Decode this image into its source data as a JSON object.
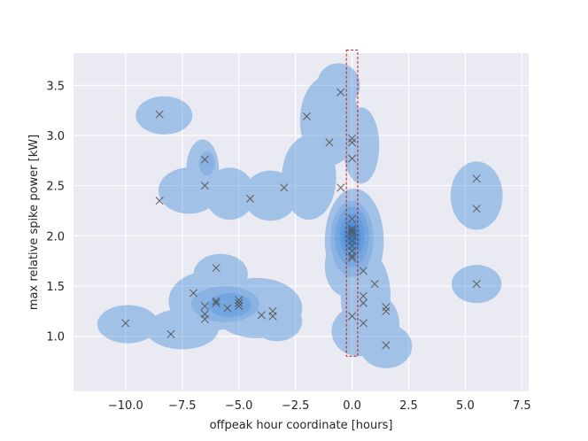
{
  "chart_data": {
    "type": "scatter",
    "title": "",
    "xlabel": "offpeak hour coordinate [hours]",
    "ylabel": "max relative spike power [kW]",
    "xlim": [
      -12.3,
      7.8
    ],
    "ylim": [
      0.45,
      3.82
    ],
    "x_ticks": [
      -10.0,
      -7.5,
      -5.0,
      -2.5,
      0.0,
      2.5,
      5.0,
      7.5
    ],
    "x_tick_labels": [
      "−10.0",
      "−7.5",
      "−5.0",
      "−2.5",
      "0.0",
      "2.5",
      "5.0",
      "7.5"
    ],
    "y_ticks": [
      1.0,
      1.5,
      2.0,
      2.5,
      3.0,
      3.5
    ],
    "y_tick_labels": [
      "1.0",
      "1.5",
      "2.0",
      "2.5",
      "3.0",
      "3.5"
    ],
    "grid": true,
    "background_color": "#eaeaf2",
    "density_color": "#1f77d4",
    "marker": "x",
    "marker_color": "#555555",
    "highlight_color": "#cc0000",
    "highlight_box": {
      "x": [
        -0.25,
        0.25
      ],
      "y": [
        0.8,
        3.85
      ]
    },
    "points": [
      {
        "x": -8.5,
        "y": 3.21
      },
      {
        "x": -8.5,
        "y": 2.35
      },
      {
        "x": -6.5,
        "y": 2.76
      },
      {
        "x": -6.5,
        "y": 2.5
      },
      {
        "x": -4.5,
        "y": 2.37
      },
      {
        "x": -3.0,
        "y": 2.48
      },
      {
        "x": -2.0,
        "y": 3.19
      },
      {
        "x": -1.0,
        "y": 2.93
      },
      {
        "x": -0.5,
        "y": 3.43
      },
      {
        "x": 0.0,
        "y": 2.97
      },
      {
        "x": 0.0,
        "y": 2.93
      },
      {
        "x": 0.0,
        "y": 2.77
      },
      {
        "x": -0.5,
        "y": 2.48
      },
      {
        "x": 0.0,
        "y": 2.17
      },
      {
        "x": 0.0,
        "y": 2.07
      },
      {
        "x": 0.0,
        "y": 2.05
      },
      {
        "x": 0.0,
        "y": 2.03
      },
      {
        "x": 0.0,
        "y": 2.0
      },
      {
        "x": 0.0,
        "y": 1.95
      },
      {
        "x": 0.0,
        "y": 1.9
      },
      {
        "x": 0.0,
        "y": 1.85
      },
      {
        "x": 0.0,
        "y": 1.8
      },
      {
        "x": 0.0,
        "y": 1.78
      },
      {
        "x": 0.5,
        "y": 1.65
      },
      {
        "x": 1.0,
        "y": 1.52
      },
      {
        "x": 0.5,
        "y": 1.4
      },
      {
        "x": 0.5,
        "y": 1.33
      },
      {
        "x": 0.0,
        "y": 1.2
      },
      {
        "x": 0.5,
        "y": 1.13
      },
      {
        "x": 1.5,
        "y": 1.29
      },
      {
        "x": 1.5,
        "y": 1.25
      },
      {
        "x": 1.5,
        "y": 0.91
      },
      {
        "x": 5.5,
        "y": 2.57
      },
      {
        "x": 5.5,
        "y": 2.27
      },
      {
        "x": 5.5,
        "y": 1.52
      },
      {
        "x": -10.0,
        "y": 1.13
      },
      {
        "x": -8.0,
        "y": 1.02
      },
      {
        "x": -7.0,
        "y": 1.43
      },
      {
        "x": -6.0,
        "y": 1.68
      },
      {
        "x": -6.5,
        "y": 1.3
      },
      {
        "x": -6.5,
        "y": 1.22
      },
      {
        "x": -6.5,
        "y": 1.17
      },
      {
        "x": -6.0,
        "y": 1.35
      },
      {
        "x": -6.0,
        "y": 1.33
      },
      {
        "x": -5.5,
        "y": 1.28
      },
      {
        "x": -5.0,
        "y": 1.36
      },
      {
        "x": -5.0,
        "y": 1.33
      },
      {
        "x": -5.0,
        "y": 1.3
      },
      {
        "x": -4.0,
        "y": 1.21
      },
      {
        "x": -3.5,
        "y": 1.25
      },
      {
        "x": -3.5,
        "y": 1.2
      }
    ],
    "density_levels": [
      {
        "level": 1,
        "opacity": 0.35,
        "blobs": [
          {
            "cx": -8.3,
            "cy": 3.2,
            "rx": 1.25,
            "ry": 0.19
          },
          {
            "cx": -6.6,
            "cy": 2.66,
            "rx": 0.72,
            "ry": 0.3
          },
          {
            "cx": -7.2,
            "cy": 2.45,
            "rx": 1.35,
            "ry": 0.23
          },
          {
            "cx": -5.4,
            "cy": 2.42,
            "rx": 1.1,
            "ry": 0.26
          },
          {
            "cx": -3.6,
            "cy": 2.4,
            "rx": 1.2,
            "ry": 0.25
          },
          {
            "cx": -1.9,
            "cy": 2.58,
            "rx": 1.2,
            "ry": 0.42
          },
          {
            "cx": -1.0,
            "cy": 3.15,
            "rx": 1.3,
            "ry": 0.45
          },
          {
            "cx": -0.6,
            "cy": 3.5,
            "rx": 0.95,
            "ry": 0.22
          },
          {
            "cx": 0.4,
            "cy": 2.9,
            "rx": 0.8,
            "ry": 0.38
          },
          {
            "cx": 0.1,
            "cy": 1.95,
            "rx": 1.3,
            "ry": 0.52
          },
          {
            "cx": -0.3,
            "cy": 1.7,
            "rx": 0.9,
            "ry": 0.3
          },
          {
            "cx": 0.6,
            "cy": 1.4,
            "rx": 1.1,
            "ry": 0.45
          },
          {
            "cx": 1.2,
            "cy": 1.1,
            "rx": 0.9,
            "ry": 0.3
          },
          {
            "cx": 1.5,
            "cy": 0.9,
            "rx": 1.15,
            "ry": 0.22
          },
          {
            "cx": 0.3,
            "cy": 1.05,
            "rx": 1.2,
            "ry": 0.25
          },
          {
            "cx": 5.5,
            "cy": 2.4,
            "rx": 1.15,
            "ry": 0.34
          },
          {
            "cx": 5.5,
            "cy": 1.52,
            "rx": 1.1,
            "ry": 0.19
          },
          {
            "cx": -9.9,
            "cy": 1.12,
            "rx": 1.35,
            "ry": 0.19
          },
          {
            "cx": -7.5,
            "cy": 1.07,
            "rx": 1.6,
            "ry": 0.2
          },
          {
            "cx": -6.3,
            "cy": 1.35,
            "rx": 1.8,
            "ry": 0.3
          },
          {
            "cx": -5.8,
            "cy": 1.62,
            "rx": 1.2,
            "ry": 0.2
          },
          {
            "cx": -4.2,
            "cy": 1.28,
            "rx": 2.0,
            "ry": 0.3
          },
          {
            "cx": -3.3,
            "cy": 1.15,
            "rx": 1.1,
            "ry": 0.2
          }
        ]
      },
      {
        "level": 2,
        "opacity": 0.18,
        "blobs": [
          {
            "cx": 0.0,
            "cy": 1.97,
            "rx": 0.95,
            "ry": 0.38
          },
          {
            "cx": -5.6,
            "cy": 1.32,
            "rx": 1.5,
            "ry": 0.18
          },
          {
            "cx": -6.4,
            "cy": 2.72,
            "rx": 0.35,
            "ry": 0.12
          }
        ]
      },
      {
        "level": 3,
        "opacity": 0.2,
        "blobs": [
          {
            "cx": 0.0,
            "cy": 1.99,
            "rx": 0.75,
            "ry": 0.3
          },
          {
            "cx": -5.4,
            "cy": 1.31,
            "rx": 0.95,
            "ry": 0.12
          }
        ]
      },
      {
        "level": 4,
        "opacity": 0.22,
        "blobs": [
          {
            "cx": 0.0,
            "cy": 2.0,
            "rx": 0.55,
            "ry": 0.22
          }
        ]
      },
      {
        "level": 5,
        "opacity": 0.3,
        "blobs": [
          {
            "cx": 0.0,
            "cy": 2.0,
            "rx": 0.38,
            "ry": 0.15
          }
        ]
      },
      {
        "level": 6,
        "opacity": 0.45,
        "blobs": [
          {
            "cx": 0.0,
            "cy": 2.0,
            "rx": 0.22,
            "ry": 0.1
          }
        ]
      }
    ]
  }
}
